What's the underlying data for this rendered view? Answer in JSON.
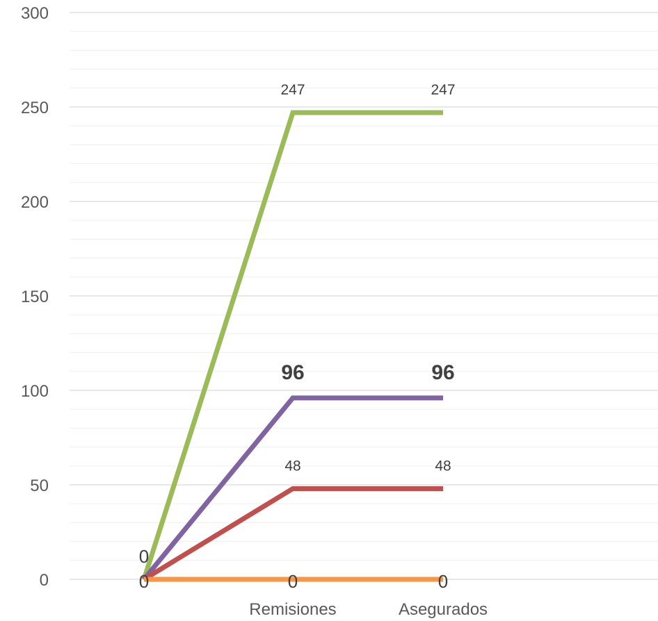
{
  "chart_data": {
    "type": "line",
    "title": "",
    "xlabel": "",
    "ylabel": "",
    "categories": [
      "",
      "Remisiones",
      "Asegurados"
    ],
    "ylim": [
      0,
      300
    ],
    "yticks": [
      0,
      50,
      100,
      150,
      200,
      250,
      300
    ],
    "grid": true,
    "minor_grid": true,
    "legend": "none",
    "series": [
      {
        "color": "#9BBB59",
        "values": [
          0,
          247,
          247
        ],
        "labels": [
          "",
          "247",
          "247"
        ],
        "label_style": "normal"
      },
      {
        "color": "#8064A2",
        "values": [
          0,
          96,
          96
        ],
        "labels": [
          "",
          "96",
          "96"
        ],
        "label_style": "bold"
      },
      {
        "color": "#C0504D",
        "values": [
          0,
          48,
          48
        ],
        "labels": [
          "",
          "48",
          "48"
        ],
        "label_style": "normal"
      },
      {
        "color": "#F79646",
        "values": [
          0,
          0,
          0
        ],
        "labels": [
          "0",
          "0",
          "0"
        ],
        "label_style": "bold"
      }
    ],
    "origin_labels": [
      "0"
    ]
  }
}
